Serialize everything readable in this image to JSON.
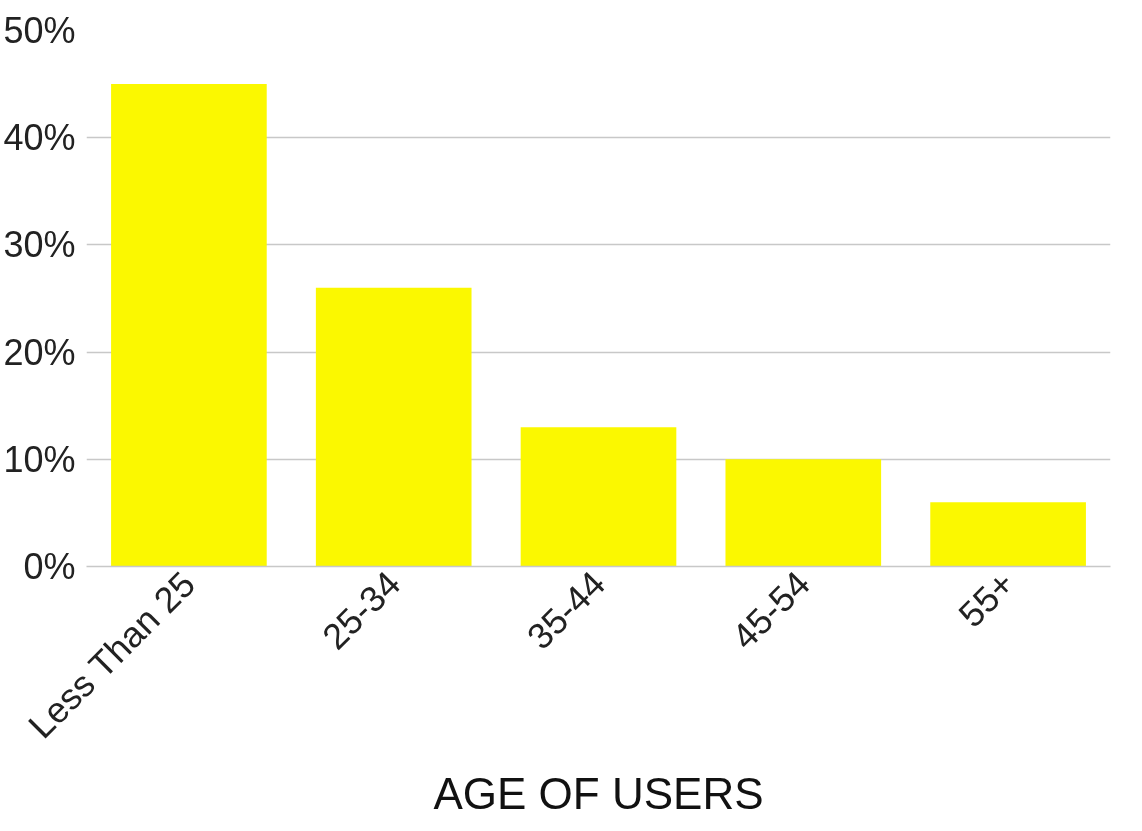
{
  "chart_data": {
    "type": "bar",
    "xlabel": "AGE OF USERS",
    "categories": [
      "Less Than 25",
      "25-34",
      "35-44",
      "45-54",
      "55+"
    ],
    "values": [
      45,
      26,
      13,
      10,
      6
    ],
    "color": "#fbf800",
    "ylim": [
      0,
      50
    ],
    "yticks": [
      {
        "value": 0,
        "label": "0%"
      },
      {
        "value": 10,
        "label": "10%"
      },
      {
        "value": 20,
        "label": "20%"
      },
      {
        "value": 30,
        "label": "30%"
      },
      {
        "value": 40,
        "label": "40%"
      },
      {
        "value": 50,
        "label": "50%"
      }
    ],
    "grid": "y"
  }
}
